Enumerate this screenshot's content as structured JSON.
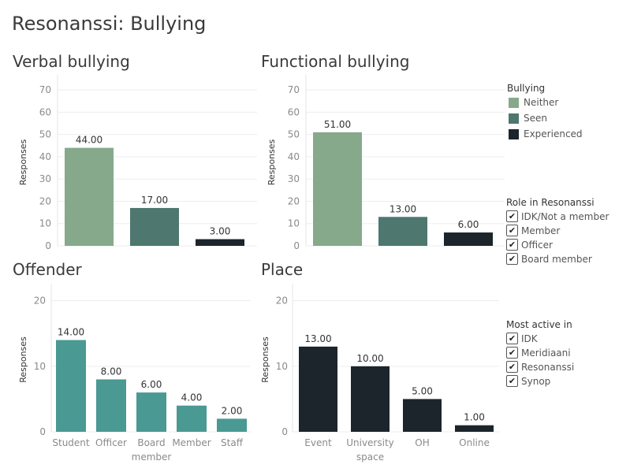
{
  "dashboard": {
    "title": "Resonanssi: Bullying"
  },
  "chart_data": [
    {
      "id": "verbal",
      "type": "bar",
      "title": "Verbal bullying",
      "ylabel": "Responses",
      "xlabel": "",
      "categories": [
        "Neither",
        "Seen",
        "Experienced"
      ],
      "category_labels_visible": false,
      "values": [
        44,
        17,
        3
      ],
      "value_labels": [
        "44.00",
        "17.00",
        "3.00"
      ],
      "colors": [
        "#86a98c",
        "#4e776f",
        "#1b252b"
      ],
      "yticks": [
        0,
        10,
        20,
        30,
        40,
        50,
        60,
        70
      ],
      "ylim": [
        0,
        75
      ],
      "grid": true
    },
    {
      "id": "functional",
      "type": "bar",
      "title": "Functional bullying",
      "ylabel": "Responses",
      "xlabel": "",
      "categories": [
        "Neither",
        "Seen",
        "Experienced"
      ],
      "category_labels_visible": false,
      "values": [
        51,
        13,
        6
      ],
      "value_labels": [
        "51.00",
        "13.00",
        "6.00"
      ],
      "colors": [
        "#86a98c",
        "#4e776f",
        "#1b252b"
      ],
      "yticks": [
        0,
        10,
        20,
        30,
        40,
        50,
        60,
        70
      ],
      "ylim": [
        0,
        75
      ],
      "grid": true
    },
    {
      "id": "offender",
      "type": "bar",
      "title": "Offender",
      "ylabel": "Responses",
      "xlabel": "",
      "categories": [
        "Student",
        "Officer",
        "Board member",
        "Member",
        "Staff"
      ],
      "category_labels_visible": true,
      "values": [
        14,
        8,
        6,
        4,
        2
      ],
      "value_labels": [
        "14.00",
        "8.00",
        "6.00",
        "4.00",
        "2.00"
      ],
      "colors": [
        "#4a9993",
        "#4a9993",
        "#4a9993",
        "#4a9993",
        "#4a9993"
      ],
      "yticks": [
        0,
        10,
        20
      ],
      "ylim": [
        0,
        22
      ],
      "grid": true
    },
    {
      "id": "place",
      "type": "bar",
      "title": "Place",
      "ylabel": "Responses",
      "xlabel": "",
      "categories": [
        "Event",
        "University space",
        "OH",
        "Online"
      ],
      "category_labels_visible": true,
      "values": [
        13,
        10,
        5,
        1
      ],
      "value_labels": [
        "13.00",
        "10.00",
        "5.00",
        "1.00"
      ],
      "colors": [
        "#1b252b",
        "#1b252b",
        "#1b252b",
        "#1b252b"
      ],
      "yticks": [
        0,
        10,
        20
      ],
      "ylim": [
        0,
        22
      ],
      "grid": true
    }
  ],
  "legends": {
    "bullying": {
      "title": "Bullying",
      "items": [
        {
          "label": "Neither",
          "color": "#86a98c"
        },
        {
          "label": "Seen",
          "color": "#4e776f"
        },
        {
          "label": "Experienced",
          "color": "#1b252b"
        }
      ]
    },
    "role": {
      "title": "Role in Resonanssi",
      "check": "✔",
      "items": [
        {
          "label": "IDK/Not a member",
          "checked": true
        },
        {
          "label": "Member",
          "checked": true
        },
        {
          "label": "Officer",
          "checked": true
        },
        {
          "label": "Board member",
          "checked": true
        }
      ]
    },
    "active": {
      "title": "Most active in",
      "check": "✔",
      "items": [
        {
          "label": "IDK",
          "checked": true
        },
        {
          "label": "Meridiaani",
          "checked": true
        },
        {
          "label": "Resonanssi",
          "checked": true
        },
        {
          "label": "Synop",
          "checked": true
        }
      ]
    }
  }
}
